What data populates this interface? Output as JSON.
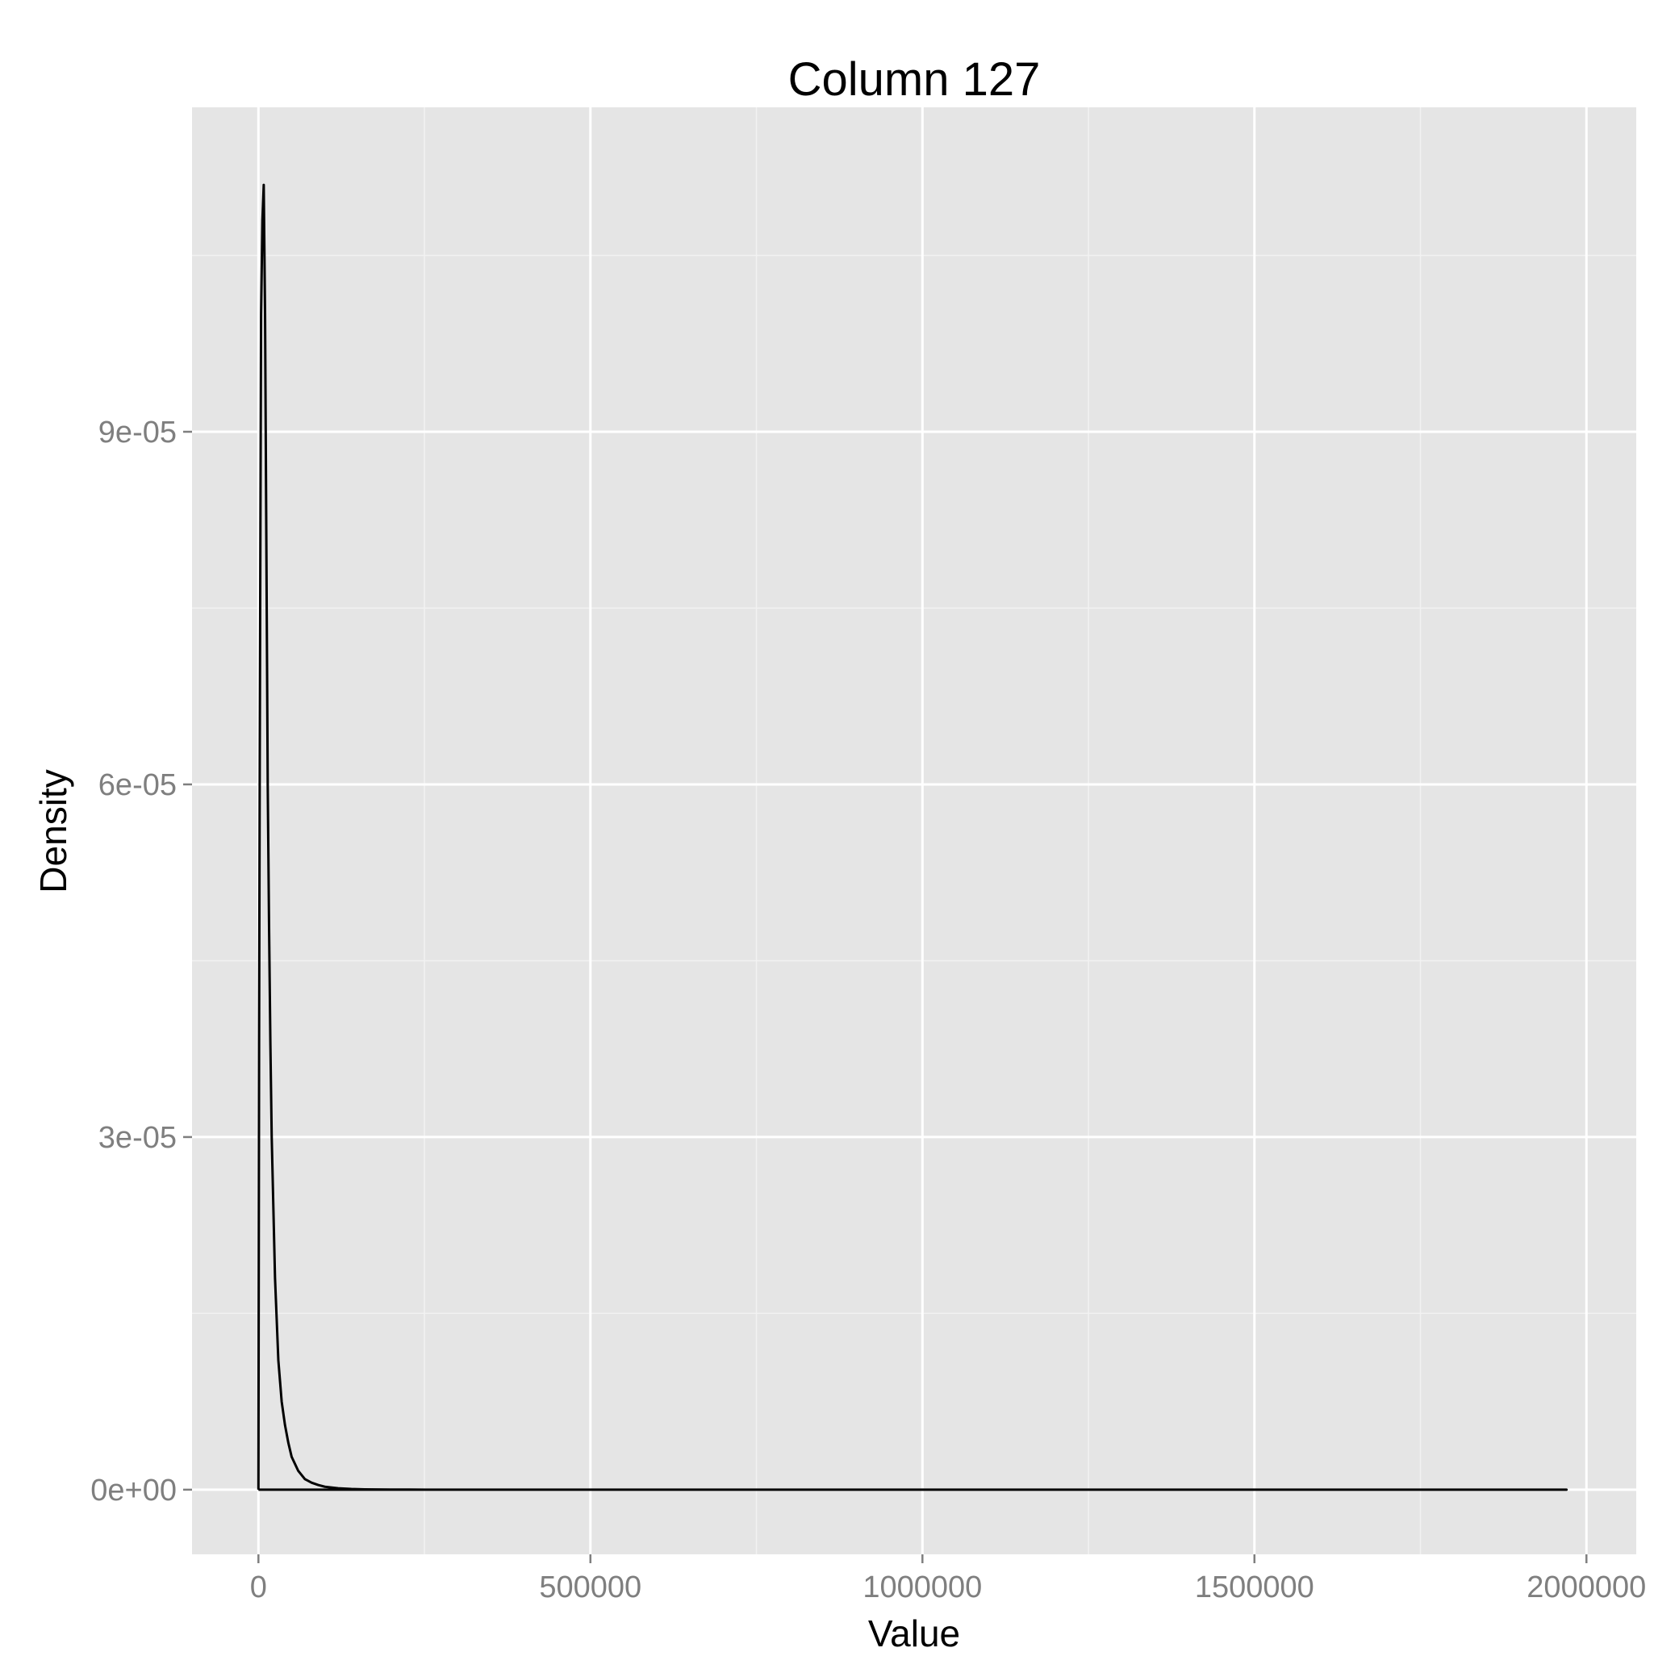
{
  "chart_data": {
    "type": "line",
    "title": "Column 127",
    "xlabel": "Value",
    "ylabel": "Density",
    "xlim": [
      -100000,
      2075000
    ],
    "ylim": [
      -5.5e-06,
      0.0001176
    ],
    "x_ticks": [
      0,
      500000,
      1000000,
      1500000,
      2000000
    ],
    "x_tick_labels": [
      "0",
      "500000",
      "1000000",
      "1500000",
      "2000000"
    ],
    "y_ticks": [
      0,
      3e-05,
      6e-05,
      9e-05
    ],
    "y_tick_labels": [
      "0e+00",
      "3e-05",
      "6e-05",
      "9e-05"
    ],
    "grid": true,
    "series": [
      {
        "color": "#000000",
        "x": [
          0,
          1000,
          2000,
          3000,
          4000,
          6000,
          8000,
          10000,
          12000,
          14000,
          16000,
          18000,
          20000,
          25000,
          30000,
          35000,
          40000,
          45000,
          50000,
          60000,
          70000,
          80000,
          90000,
          100000,
          120000,
          140000,
          160000,
          200000,
          250000,
          300000,
          380000,
          500000,
          1000000,
          1500000,
          1970000,
          1970000,
          0
        ],
        "y": [
          0,
          3.8e-05,
          6.2e-05,
          8.2e-05,
          0.0001,
          0.000108,
          0.000111,
          0.0001,
          8e-05,
          6e-05,
          4.8e-05,
          3.8e-05,
          3e-05,
          1.8e-05,
          1.1e-05,
          7.5e-06,
          5.5e-06,
          4e-06,
          2.8e-06,
          1.6e-06,
          9e-07,
          6e-07,
          4e-07,
          2.5e-07,
          1.2e-07,
          6e-08,
          3e-08,
          1e-08,
          5e-09,
          2e-09,
          1e-09,
          0,
          0,
          0,
          0,
          0,
          0
        ]
      }
    ]
  },
  "colors": {
    "panel_background": "#e5e5e5",
    "grid_major": "#ffffff",
    "grid_minor": "#f2f2f2",
    "line": "#000000",
    "tick_text": "#7f7f7f"
  }
}
